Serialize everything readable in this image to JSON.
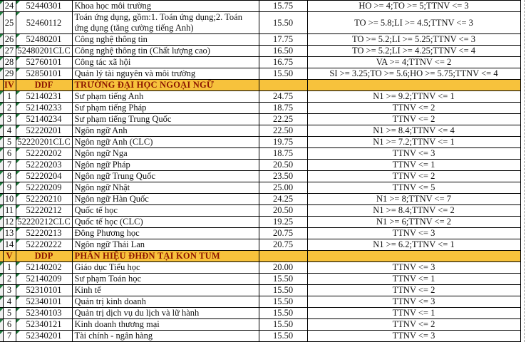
{
  "colors": {
    "section_header_bg": "#F7C23C",
    "section_header_text": "#8B1500",
    "grid_line": "#000000",
    "error_indicator": "#1E7A3C",
    "left_edge_bg": "#EFEFEF",
    "page_break_line": "#9a9a9a"
  },
  "rows": [
    {
      "type": "data",
      "num": "24",
      "code": "52440301",
      "name": "Khoa học môi trường",
      "score": "15.75",
      "cond": "HO >= 4;TO >= 5;TTNV <= 3"
    },
    {
      "type": "data",
      "num": "25",
      "code": "52460112",
      "name": "Toán ứng dụng, gồm:1. Toán ứng dụng;2. Toán ứng dụng (tăng cường tiếng Anh)",
      "score": "15.50",
      "cond": "TO >= 5.8;LI >= 4.5;TTNV <= 3"
    },
    {
      "type": "data",
      "num": "26",
      "code": "52480201",
      "name": "Công nghệ thông tin",
      "score": "17.75",
      "cond": "TO >= 5.2;LI >= 5.25;TTNV <= 3"
    },
    {
      "type": "data",
      "num": "27",
      "code": "52480201CLC",
      "name": "Công nghệ thông tin (Chất lượng cao)",
      "score": "16.50",
      "cond": "TO >= 5.2;LI >= 4.25;TTNV <= 4"
    },
    {
      "type": "data",
      "num": "28",
      "code": "52760101",
      "name": "Công tác xã hội",
      "score": "16.75",
      "cond": "VA >= 4;TTNV <= 2"
    },
    {
      "type": "data",
      "num": "29",
      "code": "52850101",
      "name": "Quản lý tài nguyên và môi trường",
      "score": "15.50",
      "cond": "SI >= 3.25;TO >= 5.6;HO >= 5.75;TTNV <= 4"
    },
    {
      "type": "section",
      "num": "IV",
      "code": "DDF",
      "name": "TRƯỜNG ĐẠI HỌC NGOẠI NGỮ",
      "score": "",
      "cond": ""
    },
    {
      "type": "data",
      "num": "1",
      "code": "52140231",
      "name": "Sư phạm tiếng Anh",
      "score": "24.75",
      "cond": "N1 >= 9.2;TTNV <= 1"
    },
    {
      "type": "data",
      "num": "2",
      "code": "52140233",
      "name": "Sư phạm tiếng Pháp",
      "score": "18.75",
      "cond": "TTNV <= 2"
    },
    {
      "type": "data",
      "num": "3",
      "code": "52140234",
      "name": "Sư phạm tiếng Trung Quốc",
      "score": "22.25",
      "cond": "TTNV <= 2"
    },
    {
      "type": "data",
      "num": "4",
      "code": "52220201",
      "name": "Ngôn ngữ Anh",
      "score": "22.50",
      "cond": "N1 >= 8.4;TTNV <= 4"
    },
    {
      "type": "data",
      "num": "5",
      "code": "52220201CLC",
      "name": "Ngôn ngữ Anh (CLC)",
      "score": "19.75",
      "cond": "N1 >= 7.2;TTNV <= 1"
    },
    {
      "type": "data",
      "num": "6",
      "code": "52220202",
      "name": "Ngôn ngữ Nga",
      "score": "18.75",
      "cond": "TTNV <= 3"
    },
    {
      "type": "data",
      "num": "7",
      "code": "52220203",
      "name": "Ngôn ngữ Pháp",
      "score": "20.50",
      "cond": "TTNV <= 1"
    },
    {
      "type": "data",
      "num": "8",
      "code": "52220204",
      "name": "Ngôn ngữ Trung Quốc",
      "score": "23.50",
      "cond": "TTNV <= 2"
    },
    {
      "type": "data",
      "num": "9",
      "code": "52220209",
      "name": "Ngôn ngữ Nhật",
      "score": "25.00",
      "cond": "TTNV <= 5"
    },
    {
      "type": "data",
      "num": "10",
      "code": "52220210",
      "name": "Ngôn ngữ Hàn Quốc",
      "score": "24.25",
      "cond": "N1 >= 8;TTNV <= 7"
    },
    {
      "type": "data",
      "num": "11",
      "code": "52220212",
      "name": "Quốc tế học",
      "score": "20.50",
      "cond": "N1 >= 8.4;TTNV <= 2"
    },
    {
      "type": "data",
      "num": "12",
      "code": "52220212CLC",
      "name": "Quốc tế học (CLC)",
      "score": "19.25",
      "cond": "N1 >= 6;TTNV <= 2"
    },
    {
      "type": "data",
      "num": "13",
      "code": "52220213",
      "name": "Đông Phương học",
      "score": "20.75",
      "cond": "TTNV <= 3"
    },
    {
      "type": "data",
      "num": "14",
      "code": "52220222",
      "name": "Ngôn ngữ Thái Lan",
      "score": "20.75",
      "cond": "N1 >= 6.2;TTNV <= 1"
    },
    {
      "type": "section",
      "num": "V",
      "code": "DDP",
      "name": "PHÂN HIỆU ĐHĐN TẠI KON TUM",
      "score": "",
      "cond": ""
    },
    {
      "type": "data",
      "num": "1",
      "code": "52140202",
      "name": "Giáo dục Tiểu học",
      "score": "20.00",
      "cond": "TTNV <= 3"
    },
    {
      "type": "data",
      "num": "2",
      "code": "52140209",
      "name": "Sư phạm Toán học",
      "score": "15.50",
      "cond": "TTNV <= 1"
    },
    {
      "type": "data",
      "num": "3",
      "code": "52310101",
      "name": "Kinh tế",
      "score": "15.50",
      "cond": "TTNV <= 2"
    },
    {
      "type": "data",
      "num": "4",
      "code": "52340101",
      "name": "Quản trị kinh doanh",
      "score": "15.50",
      "cond": "TTNV <= 3"
    },
    {
      "type": "data",
      "num": "5",
      "code": "52340103",
      "name": "Quản trị dịch vụ du lịch và lữ hành",
      "score": "15.50",
      "cond": "TTNV <= 1"
    },
    {
      "type": "data",
      "num": "6",
      "code": "52340121",
      "name": "Kinh doanh thương mại",
      "score": "15.50",
      "cond": "TTNV <= 2"
    },
    {
      "type": "data",
      "num": "7",
      "code": "52340201",
      "name": "Tài chính - ngân hàng",
      "score": "15.50",
      "cond": "TTNV <= 3"
    }
  ]
}
